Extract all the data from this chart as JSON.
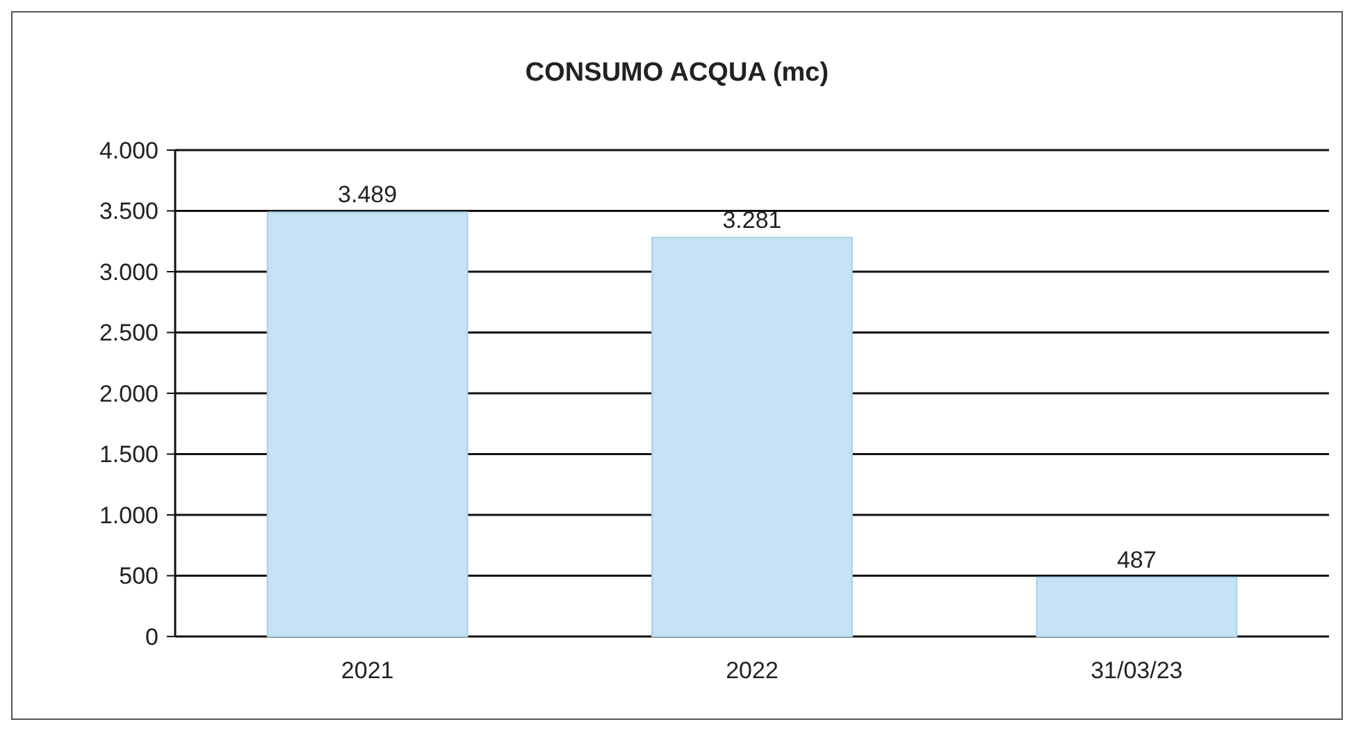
{
  "chart_data": {
    "type": "bar",
    "title": "CONSUMO ACQUA (mc)",
    "categories": [
      "2021",
      "2022",
      "31/03/23"
    ],
    "values": [
      3489,
      3281,
      487
    ],
    "color": "#c5e3f4",
    "value_labels": [
      "3.489",
      "3.281",
      "487"
    ],
    "ylim": [
      0,
      4000
    ],
    "yticks": [
      0,
      500,
      {
        "value": 1000,
        "label": "1.000"
      },
      {
        "value": 1500,
        "label": "1.500"
      },
      {
        "value": 2000,
        "label": "2.000"
      },
      {
        "value": 2500,
        "label": "2.500"
      },
      {
        "value": 3000,
        "label": "3.000"
      },
      {
        "value": 3500,
        "label": "3.500"
      },
      {
        "value": 4000,
        "label": "4.000"
      }
    ],
    "grid": "y"
  }
}
